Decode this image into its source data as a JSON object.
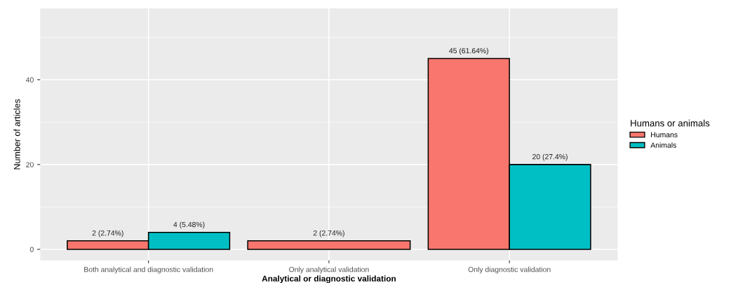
{
  "chart_data": {
    "type": "bar",
    "xlabel": "Analytical or diagnostic validation",
    "ylabel": "Number of articles",
    "legend_title": "Humans or animals",
    "categories": [
      "Both analytical and diagnostic validation",
      "Only analytical validation",
      "Only diagnostic validation"
    ],
    "series": [
      {
        "name": "Humans",
        "color": "#f8766d",
        "values": [
          2,
          2,
          45
        ],
        "value_labels": [
          "2 (2.74%)",
          "2 (2.74%)",
          "45 (61.64%)"
        ]
      },
      {
        "name": "Animals",
        "color": "#00bfc4",
        "values": [
          4,
          null,
          20
        ],
        "value_labels": [
          "4 (5.48%)",
          null,
          "20 (27.4%)"
        ]
      }
    ],
    "ylim": [
      -2.6,
      56.8
    ],
    "yticks": [
      0,
      20,
      40
    ],
    "grid": true,
    "legend": "right"
  }
}
